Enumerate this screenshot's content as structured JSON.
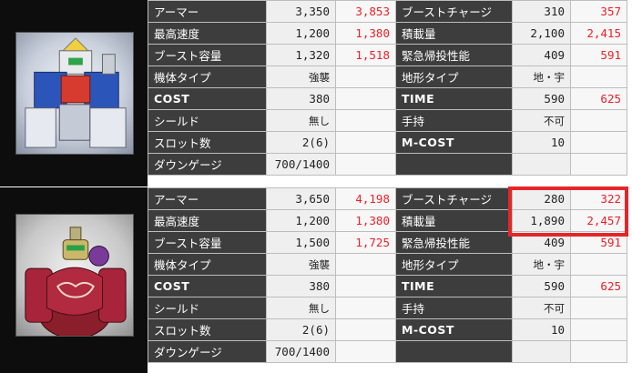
{
  "units": [
    {
      "rows": [
        {
          "l1": "アーマー",
          "v1": "3,350",
          "u1": "3,853",
          "l2": "ブーストチャージ",
          "v2": "310",
          "u2": "357"
        },
        {
          "l1": "最高速度",
          "v1": "1,200",
          "u1": "1,380",
          "l2": "積載量",
          "v2": "2,100",
          "u2": "2,415"
        },
        {
          "l1": "ブースト容量",
          "v1": "1,320",
          "u1": "1,518",
          "l2": "緊急帰投性能",
          "v2": "409",
          "u2": "591"
        },
        {
          "l1": "機体タイプ",
          "v1": "強襲",
          "u1": "",
          "l2": "地形タイプ",
          "v2": "地・宇",
          "u2": ""
        },
        {
          "l1": "COST",
          "v1": "380",
          "u1": "",
          "l2": "TIME",
          "v2": "590",
          "u2": "625"
        },
        {
          "l1": "シールド",
          "v1": "無し",
          "u1": "",
          "l2": "手持",
          "v2": "不可",
          "u2": ""
        },
        {
          "l1": "スロット数",
          "v1": "2(6)",
          "u1": "",
          "l2": "M-COST",
          "v2": "10",
          "u2": ""
        },
        {
          "l1": "ダウンゲージ",
          "v1": "700/1400",
          "u1": "",
          "l2": "",
          "v2": "",
          "u2": ""
        }
      ]
    },
    {
      "rows": [
        {
          "l1": "アーマー",
          "v1": "3,650",
          "u1": "4,198",
          "l2": "ブーストチャージ",
          "v2": "280",
          "u2": "322"
        },
        {
          "l1": "最高速度",
          "v1": "1,200",
          "u1": "1,380",
          "l2": "積載量",
          "v2": "1,890",
          "u2": "2,457"
        },
        {
          "l1": "ブースト容量",
          "v1": "1,500",
          "u1": "1,725",
          "l2": "緊急帰投性能",
          "v2": "409",
          "u2": "591"
        },
        {
          "l1": "機体タイプ",
          "v1": "強襲",
          "u1": "",
          "l2": "地形タイプ",
          "v2": "地・宇",
          "u2": ""
        },
        {
          "l1": "COST",
          "v1": "380",
          "u1": "",
          "l2": "TIME",
          "v2": "590",
          "u2": "625"
        },
        {
          "l1": "シールド",
          "v1": "無し",
          "u1": "",
          "l2": "手持",
          "v2": "不可",
          "u2": ""
        },
        {
          "l1": "スロット数",
          "v1": "2(6)",
          "u1": "",
          "l2": "M-COST",
          "v2": "10",
          "u2": ""
        },
        {
          "l1": "ダウンゲージ",
          "v1": "700/1400",
          "u1": "",
          "l2": "",
          "v2": "",
          "u2": ""
        }
      ]
    }
  ],
  "colors": {
    "upgrade": "#e8202a",
    "highlight": "#e3262a",
    "label_bg": "#3d3d3d"
  }
}
